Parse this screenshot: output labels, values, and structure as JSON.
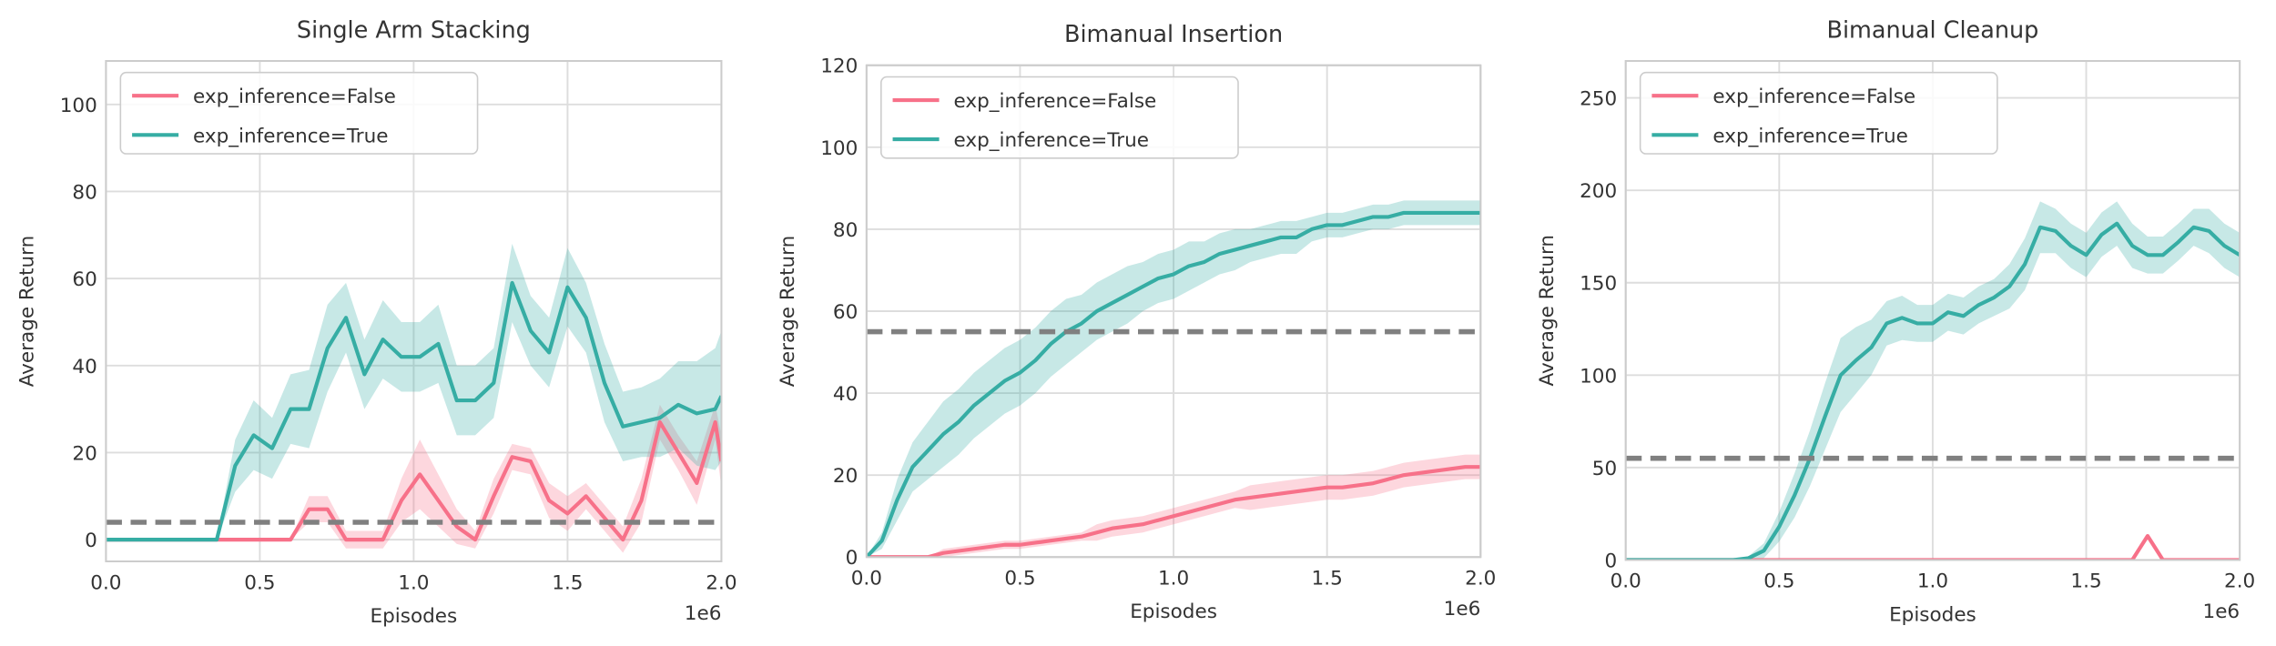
{
  "chart_data": [
    {
      "type": "line",
      "title": "Single Arm Stacking",
      "xlabel": "Episodes",
      "ylabel": "Average Return",
      "x_offset_label": "1e6",
      "x": [
        0,
        0.06,
        0.12,
        0.18,
        0.24,
        0.3,
        0.36,
        0.42,
        0.48,
        0.54,
        0.6,
        0.66,
        0.72,
        0.78,
        0.84,
        0.9,
        0.96,
        1.02,
        1.08,
        1.14,
        1.2,
        1.26,
        1.32,
        1.38,
        1.44,
        1.5,
        1.56,
        1.62,
        1.68,
        1.74,
        1.8,
        1.86,
        1.92,
        1.98,
        2.0
      ],
      "series": [
        {
          "name": "exp_inference=False",
          "color": "#f77189",
          "values": [
            0,
            0,
            0,
            0,
            0,
            0,
            0,
            0,
            0,
            0,
            0,
            7,
            7,
            0,
            0,
            0,
            9,
            15,
            9,
            3,
            0,
            10,
            19,
            18,
            9,
            6,
            10,
            5,
            0,
            9,
            27,
            20,
            13,
            27,
            18
          ],
          "spread": [
            0,
            0,
            0,
            0,
            0,
            0,
            0,
            0,
            0,
            0,
            0,
            3,
            3,
            2,
            2,
            2,
            5,
            8,
            6,
            4,
            2,
            4,
            3,
            3,
            4,
            4,
            3,
            3,
            3,
            5,
            4,
            4,
            5,
            4,
            6
          ]
        },
        {
          "name": "exp_inference=True",
          "color": "#36ada4",
          "values": [
            0,
            0,
            0,
            0,
            0,
            0,
            0,
            17,
            24,
            21,
            30,
            30,
            44,
            51,
            38,
            46,
            42,
            42,
            45,
            32,
            32,
            36,
            59,
            48,
            43,
            58,
            51,
            36,
            26,
            27,
            28,
            31,
            29,
            30,
            33
          ],
          "spread": [
            0,
            0,
            0,
            0,
            0,
            0,
            0,
            6,
            8,
            7,
            8,
            9,
            10,
            8,
            8,
            9,
            8,
            8,
            9,
            8,
            8,
            8,
            9,
            8,
            8,
            9,
            8,
            9,
            8,
            8,
            9,
            10,
            12,
            14,
            15
          ]
        }
      ],
      "hline": 4,
      "hline_color": "#808080",
      "xlim": [
        0,
        2
      ],
      "xticks": [
        {
          "value": 0,
          "label": "0.0"
        },
        0.5,
        {
          "value": 1,
          "label": "1.0"
        },
        1.5,
        {
          "value": 2,
          "label": "2.0"
        }
      ],
      "ylim": [
        -5,
        110
      ],
      "yticks": [
        0,
        20,
        40,
        60,
        80,
        100
      ],
      "grid": true,
      "legend": "upper left"
    },
    {
      "type": "line",
      "title": "Bimanual Insertion",
      "xlabel": "Episodes",
      "ylabel": "Average Return",
      "x_offset_label": "1e6",
      "x": [
        0,
        0.05,
        0.1,
        0.15,
        0.2,
        0.25,
        0.3,
        0.35,
        0.4,
        0.45,
        0.5,
        0.55,
        0.6,
        0.65,
        0.7,
        0.75,
        0.8,
        0.85,
        0.9,
        0.95,
        1.0,
        1.05,
        1.1,
        1.15,
        1.2,
        1.25,
        1.3,
        1.35,
        1.4,
        1.45,
        1.5,
        1.55,
        1.6,
        1.65,
        1.7,
        1.75,
        1.8,
        1.85,
        1.9,
        1.95,
        2.0
      ],
      "series": [
        {
          "name": "exp_inference=False",
          "color": "#f77189",
          "values": [
            0,
            0,
            0,
            0,
            0,
            1,
            1.5,
            2,
            2.5,
            3,
            3,
            3.5,
            4,
            4.5,
            5,
            6,
            7,
            7.5,
            8,
            9,
            10,
            11,
            12,
            13,
            14,
            14.5,
            15,
            15.5,
            16,
            16.5,
            17,
            17,
            17.5,
            18,
            19,
            20,
            20.5,
            21,
            21.5,
            22,
            22
          ],
          "spread": [
            0,
            0,
            0,
            0,
            0,
            1,
            1,
            1,
            1,
            1,
            1,
            1,
            1,
            1,
            1,
            2,
            2,
            2,
            2,
            2,
            2,
            2,
            2,
            2,
            2,
            3,
            3,
            3,
            3,
            3,
            3,
            3,
            3,
            3,
            3,
            3,
            3,
            3,
            3,
            3,
            3
          ]
        },
        {
          "name": "exp_inference=True",
          "color": "#36ada4",
          "values": [
            0,
            4,
            14,
            22,
            26,
            30,
            33,
            37,
            40,
            43,
            45,
            48,
            52,
            55,
            57,
            60,
            62,
            64,
            66,
            68,
            69,
            71,
            72,
            74,
            75,
            76,
            77,
            78,
            78,
            80,
            81,
            81,
            82,
            83,
            83,
            84,
            84,
            84,
            84,
            84,
            84
          ],
          "spread": [
            0,
            2,
            5,
            6,
            7,
            8,
            8,
            8,
            8,
            8,
            8,
            8,
            8,
            8,
            7,
            7,
            7,
            7,
            6,
            6,
            6,
            6,
            5,
            5,
            5,
            4,
            4,
            4,
            4,
            3,
            3,
            3,
            3,
            3,
            3,
            3,
            3,
            3,
            3,
            3,
            3
          ]
        }
      ],
      "hline": 55,
      "hline_color": "#808080",
      "xlim": [
        0,
        2
      ],
      "xticks": [
        {
          "value": 0,
          "label": "0.0"
        },
        0.5,
        {
          "value": 1,
          "label": "1.0"
        },
        1.5,
        {
          "value": 2,
          "label": "2.0"
        }
      ],
      "ylim": [
        0,
        120
      ],
      "yticks": [
        0,
        20,
        40,
        60,
        80,
        100,
        120
      ],
      "grid": true,
      "legend": "upper left"
    },
    {
      "type": "line",
      "title": "Bimanual Cleanup",
      "xlabel": "Episodes",
      "ylabel": "Average Return",
      "x_offset_label": "1e6",
      "x": [
        0,
        0.05,
        0.1,
        0.15,
        0.2,
        0.25,
        0.3,
        0.35,
        0.4,
        0.45,
        0.5,
        0.55,
        0.6,
        0.65,
        0.7,
        0.75,
        0.8,
        0.85,
        0.9,
        0.95,
        1.0,
        1.05,
        1.1,
        1.15,
        1.2,
        1.25,
        1.3,
        1.35,
        1.4,
        1.45,
        1.5,
        1.55,
        1.6,
        1.65,
        1.7,
        1.75,
        1.8,
        1.85,
        1.9,
        1.95,
        2.0
      ],
      "series": [
        {
          "name": "exp_inference=False",
          "color": "#f77189",
          "values": [
            0,
            0,
            0,
            0,
            0,
            0,
            0,
            0,
            0,
            0,
            0,
            0,
            0,
            0,
            0,
            0,
            0,
            0,
            0,
            0,
            0,
            0,
            0,
            0,
            0,
            0,
            0,
            0,
            0,
            0,
            0,
            0,
            0,
            0,
            13,
            0,
            0,
            0,
            0,
            0,
            0
          ],
          "spread": [
            0,
            0,
            0,
            0,
            0,
            0,
            0,
            0,
            0,
            0,
            0,
            0,
            0,
            0,
            0,
            0,
            0,
            0,
            0,
            0,
            0,
            0,
            0,
            0,
            0,
            0,
            0,
            0,
            0,
            0,
            0,
            0,
            0,
            0,
            0,
            0,
            0,
            0,
            0,
            0,
            0
          ]
        },
        {
          "name": "exp_inference=True",
          "color": "#36ada4",
          "values": [
            0,
            0,
            0,
            0,
            0,
            0,
            0,
            0,
            1,
            5,
            18,
            35,
            55,
            78,
            100,
            108,
            115,
            128,
            131,
            128,
            128,
            134,
            132,
            138,
            142,
            148,
            160,
            180,
            178,
            170,
            165,
            176,
            182,
            170,
            165,
            165,
            172,
            180,
            178,
            170,
            165
          ],
          "spread": [
            0,
            0,
            0,
            0,
            0,
            0,
            0,
            0,
            1,
            4,
            8,
            12,
            15,
            18,
            20,
            18,
            15,
            12,
            12,
            10,
            10,
            10,
            10,
            10,
            10,
            12,
            14,
            14,
            12,
            12,
            12,
            12,
            12,
            12,
            10,
            10,
            10,
            10,
            12,
            12,
            12
          ]
        }
      ],
      "hline": 55,
      "hline_color": "#808080",
      "xlim": [
        0,
        2
      ],
      "xticks": [
        {
          "value": 0,
          "label": "0.0"
        },
        0.5,
        {
          "value": 1,
          "label": "1.0"
        },
        1.5,
        {
          "value": 2,
          "label": "2.0"
        }
      ],
      "ylim": [
        0,
        270
      ],
      "yticks": [
        0,
        50,
        100,
        150,
        200,
        250
      ],
      "grid": true,
      "legend": "upper left"
    }
  ]
}
